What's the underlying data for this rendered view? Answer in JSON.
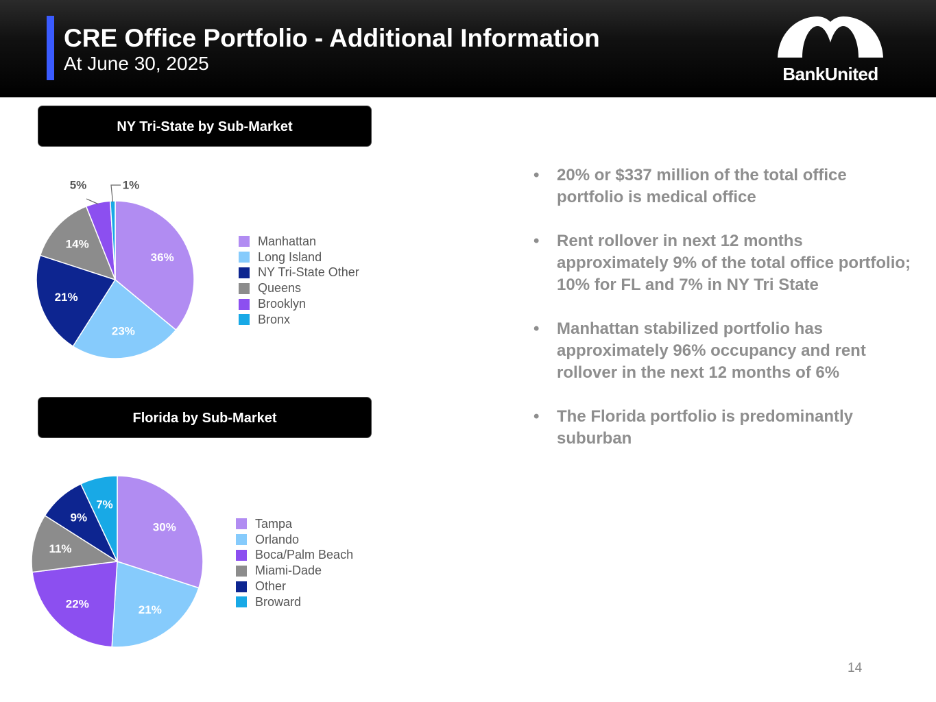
{
  "header": {
    "title": "CRE Office Portfolio - Additional Information",
    "subtitle": "At June 30, 2025",
    "logo_text": "BankUnited",
    "logo_icon": "bankunited-arch-logo-icon"
  },
  "colors": {
    "header_background": "#000000",
    "accent_bar": "#3a5bff",
    "bullet_text": "#8e8e8e"
  },
  "chart_data": [
    {
      "type": "pie",
      "title": "NY Tri-State by Sub-Market",
      "categories": [
        "Manhattan",
        "Long Island",
        "NY Tri-State Other",
        "Queens",
        "Brooklyn",
        "Bronx"
      ],
      "values": [
        36,
        23,
        21,
        14,
        5,
        1
      ],
      "value_labels": [
        "36%",
        "23%",
        "21%",
        "14%",
        "5%",
        "1%"
      ],
      "colors": [
        "#b18cf2",
        "#86cbfc",
        "#0d2590",
        "#8c8c8c",
        "#8c4ff0",
        "#18a9e6"
      ],
      "label_colors": [
        "#ffffff",
        "#ffffff",
        "#ffffff",
        "#ffffff",
        "#555555",
        "#555555"
      ],
      "legend_position": "right"
    },
    {
      "type": "pie",
      "title": "Florida by Sub-Market",
      "categories": [
        "Tampa",
        "Orlando",
        "Boca/Palm Beach",
        "Miami-Dade",
        "Other",
        "Broward"
      ],
      "values": [
        30,
        21,
        22,
        11,
        9,
        7
      ],
      "value_labels": [
        "30%",
        "21%",
        "22%",
        "11%",
        "9%",
        "7%"
      ],
      "colors": [
        "#b18cf2",
        "#86cbfc",
        "#8c4ff0",
        "#8c8c8c",
        "#0d2590",
        "#18a9e6"
      ],
      "label_colors": [
        "#ffffff",
        "#ffffff",
        "#ffffff",
        "#ffffff",
        "#ffffff",
        "#ffffff"
      ],
      "legend_position": "right"
    }
  ],
  "bullets": [
    "20% or $337 million of the total office portfolio is medical office",
    "Rent rollover in next 12 months approximately 9% of the total office portfolio; 10% for FL and 7% in NY Tri State",
    "Manhattan stabilized portfolio has approximately 96% occupancy and rent rollover in the next 12 months of 6%",
    "The Florida portfolio is predominantly suburban"
  ],
  "bullet_marker": "•",
  "page_number": "14"
}
